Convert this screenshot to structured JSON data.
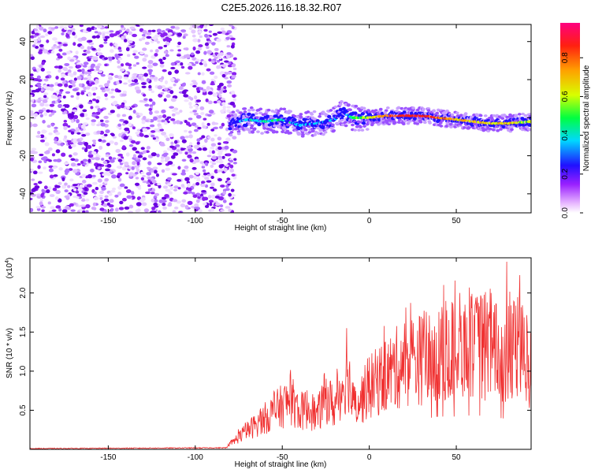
{
  "title": "C2E5.2026.116.18.32.R07",
  "colors": {
    "snr_line": "#f03030",
    "spec_low": "#e8d0ff",
    "spec_mid": "#7a10f0",
    "spec_hi": "#ff2020"
  },
  "chart_data": [
    {
      "type": "heatmap",
      "name": "spectrogram",
      "xlabel": "Height of straight line (km)",
      "ylabel": "Frequency (Hz)",
      "xlim": [
        -195,
        93
      ],
      "ylim": [
        -50,
        49
      ],
      "x_ticks": [
        -150,
        -100,
        -50,
        0,
        50
      ],
      "y_ticks": [
        -40,
        -20,
        0,
        20,
        40
      ],
      "noise_region_km": [
        -195,
        -80
      ],
      "signal": {
        "x": [
          -80,
          -70,
          -60,
          -50,
          -40,
          -30,
          -20,
          -15,
          -10,
          0,
          10,
          20,
          30,
          40,
          50,
          60,
          70,
          80,
          93
        ],
        "center_hz": [
          -3,
          -1,
          -2,
          -1,
          -4,
          -3,
          -1,
          3,
          0,
          0,
          1,
          1,
          1,
          0,
          -1,
          -2,
          -3,
          -3,
          -2
        ],
        "amplitude": [
          0.3,
          0.4,
          0.45,
          0.45,
          0.4,
          0.4,
          0.35,
          0.3,
          0.5,
          0.65,
          0.8,
          0.95,
          0.95,
          0.85,
          0.75,
          0.7,
          0.7,
          0.75,
          0.6
        ]
      },
      "colorbar": {
        "label": "Normalized spectral amplitude",
        "range": [
          0.0,
          0.98
        ],
        "ticks": [
          "0.0",
          "0.2",
          "0.4",
          "0.6",
          "0.8"
        ],
        "tick_values": [
          0.0,
          0.2,
          0.4,
          0.6,
          0.8
        ]
      }
    },
    {
      "type": "line",
      "name": "snr",
      "xlabel": "Height of straight line (km)",
      "ylabel": "SNR (10 * v/v)",
      "y_scale_label": "(x10",
      "y_scale_exp": "4",
      "xlim": [
        -195,
        93
      ],
      "ylim": [
        0,
        2.45
      ],
      "x_ticks": [
        -150,
        -100,
        -50,
        0,
        50
      ],
      "y_ticks": [
        "0.5",
        "1.0",
        "1.5",
        "2.0"
      ],
      "y_tick_values": [
        0.5,
        1.0,
        1.5,
        2.0
      ],
      "envelope": {
        "x": [
          -195,
          -82,
          -75,
          -65,
          -55,
          -45,
          -40,
          -35,
          -30,
          -25,
          -20,
          -15,
          -12,
          -10,
          -5,
          0,
          10,
          20,
          30,
          40,
          50,
          60,
          70,
          80,
          85,
          93
        ],
        "y": [
          0.01,
          0.02,
          0.15,
          0.3,
          0.45,
          0.6,
          0.45,
          0.5,
          0.4,
          0.65,
          0.5,
          0.8,
          0.95,
          0.55,
          0.6,
          0.75,
          0.9,
          1.05,
          1.1,
          1.2,
          1.2,
          1.25,
          1.2,
          1.1,
          1.3,
          1.0
        ]
      },
      "peaks": [
        {
          "x": -13,
          "y": 1.55
        },
        {
          "x": 52,
          "y": 2.0
        },
        {
          "x": 55,
          "y": 1.85
        },
        {
          "x": 62,
          "y": 1.95
        },
        {
          "x": 70,
          "y": 2.0
        },
        {
          "x": 79,
          "y": 2.4
        }
      ]
    }
  ]
}
